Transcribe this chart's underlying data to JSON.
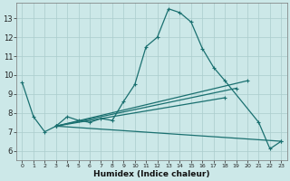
{
  "xlabel": "Humidex (Indice chaleur)",
  "bg_color": "#cce8e8",
  "grid_color": "#aacccc",
  "line_color": "#1a7070",
  "xlim": [
    -0.5,
    23.5
  ],
  "ylim": [
    5.5,
    13.8
  ],
  "yticks": [
    6,
    7,
    8,
    9,
    10,
    11,
    12,
    13
  ],
  "xticks": [
    0,
    1,
    2,
    3,
    4,
    5,
    6,
    7,
    8,
    9,
    10,
    11,
    12,
    13,
    14,
    15,
    16,
    17,
    18,
    19,
    20,
    21,
    22,
    23
  ],
  "main_x": [
    0,
    1,
    2,
    3,
    4,
    5,
    6,
    7,
    8,
    9,
    10,
    11,
    12,
    13,
    14,
    15,
    16,
    17,
    18,
    21,
    22,
    23
  ],
  "main_y": [
    9.6,
    7.8,
    7.0,
    7.3,
    7.8,
    7.6,
    7.5,
    7.7,
    7.6,
    8.6,
    9.5,
    11.5,
    12.0,
    13.5,
    13.3,
    12.8,
    11.4,
    10.4,
    9.7,
    7.5,
    6.1,
    6.5
  ],
  "trend_lines": [
    {
      "x": [
        3,
        23
      ],
      "y": [
        7.3,
        6.5
      ]
    },
    {
      "x": [
        3,
        20
      ],
      "y": [
        7.3,
        9.7
      ]
    },
    {
      "x": [
        3,
        19
      ],
      "y": [
        7.3,
        9.3
      ]
    },
    {
      "x": [
        3,
        18
      ],
      "y": [
        7.3,
        8.8
      ]
    }
  ],
  "lw": 0.9,
  "ms": 3.5
}
